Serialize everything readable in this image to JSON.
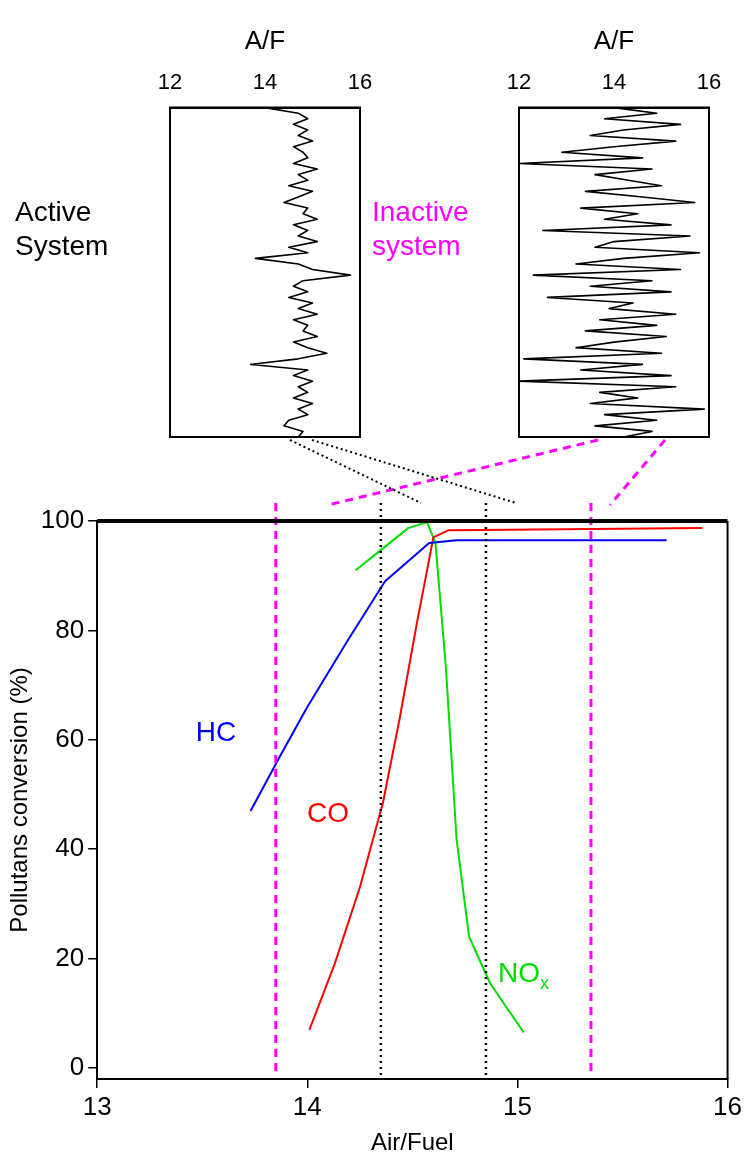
{
  "chart_data": [
    {
      "type": "line",
      "orientation": "horizontal",
      "xlabel": "A/F",
      "xlim": [
        12,
        16
      ],
      "xticks": [
        12,
        14,
        16
      ],
      "tick_labels": "x",
      "marker": "none",
      "annotations": [
        "Active System"
      ],
      "categories": [
        null,
        null,
        null,
        null,
        null,
        null,
        null,
        null,
        null,
        null,
        null,
        null,
        null,
        null,
        null,
        null,
        null,
        null,
        null,
        null,
        null,
        null,
        null,
        null,
        null,
        null,
        null,
        null,
        null,
        null,
        null,
        null,
        null,
        null,
        null,
        null,
        null,
        null,
        null,
        null,
        null,
        null,
        null,
        null,
        null,
        null,
        null,
        null,
        null,
        null,
        null,
        null,
        null,
        null,
        null,
        null,
        null,
        null,
        null,
        null
      ],
      "series": [
        {
          "color": "#000000",
          "values": [
            14.0,
            14.7,
            14.9,
            14.6,
            14.9,
            14.7,
            15.0,
            14.6,
            14.8,
            14.9,
            14.6,
            15.1,
            14.7,
            14.9,
            14.5,
            15.0,
            14.7,
            14.4,
            14.9,
            14.8,
            15.1,
            14.6,
            14.9,
            14.7,
            15.1,
            14.5,
            14.9,
            13.8,
            14.7,
            15.0,
            15.8,
            14.8,
            14.6,
            14.9,
            14.5,
            15.0,
            14.7,
            15.1,
            14.6,
            14.9,
            14.8,
            15.1,
            14.6,
            14.9,
            15.3,
            14.7,
            13.7,
            14.9,
            14.6,
            15.0,
            14.7,
            14.9,
            14.6,
            15.0,
            14.7,
            14.9,
            14.5,
            14.4,
            14.8,
            14.7
          ]
        }
      ]
    },
    {
      "type": "line",
      "orientation": "horizontal",
      "xlabel": "A/F",
      "xlim": [
        12,
        16
      ],
      "xticks": [
        12,
        14,
        16
      ],
      "tick_labels": "x",
      "marker": "none",
      "annotations": [
        "Inactive system"
      ],
      "categories": [
        null,
        null,
        null,
        null,
        null,
        null,
        null,
        null,
        null,
        null,
        null,
        null,
        null,
        null,
        null,
        null,
        null,
        null,
        null,
        null,
        null,
        null,
        null,
        null,
        null,
        null,
        null,
        null,
        null,
        null,
        null,
        null,
        null,
        null,
        null,
        null,
        null,
        null,
        null,
        null,
        null,
        null,
        null,
        null,
        null,
        null,
        null,
        null,
        null,
        null,
        null,
        null,
        null,
        null,
        null,
        null,
        null,
        null,
        null,
        null
      ],
      "series": [
        {
          "color": "#000000",
          "values": [
            14.0,
            14.9,
            13.8,
            15.4,
            14.2,
            13.5,
            15.3,
            14.0,
            12.9,
            14.6,
            12.0,
            14.8,
            13.6,
            14.3,
            15.0,
            13.4,
            14.6,
            15.7,
            13.3,
            14.5,
            13.8,
            15.2,
            12.5,
            15.6,
            14.0,
            13.6,
            15.8,
            14.2,
            13.2,
            15.4,
            12.3,
            14.8,
            13.5,
            15.2,
            12.6,
            14.4,
            13.9,
            15.3,
            13.7,
            14.9,
            13.4,
            15.1,
            14.0,
            13.2,
            15.0,
            12.1,
            14.6,
            13.3,
            15.2,
            12.0,
            15.3,
            13.7,
            14.5,
            13.5,
            15.9,
            13.8,
            14.9,
            13.6,
            14.8,
            14.2
          ]
        }
      ]
    },
    {
      "type": "line",
      "xlabel": "Air/Fuel",
      "ylabel": "Pollutans conversion (%)",
      "xlim": [
        13,
        16
      ],
      "xticks": [
        13,
        14,
        15,
        16
      ],
      "ylim": [
        -2,
        100
      ],
      "yticks": [
        0,
        20,
        40,
        60,
        80,
        100
      ],
      "marker": "none",
      "grid": false,
      "legend": false,
      "series": [
        {
          "name": "HC",
          "color": "#0000ff",
          "x": [
            13.73,
            13.87,
            14.0,
            14.19,
            14.37,
            14.58,
            14.71,
            15.71
          ],
          "values": [
            47,
            57,
            66,
            78,
            89,
            96,
            96.5,
            96.5
          ]
        },
        {
          "name": "CO",
          "color": "#ff0000",
          "x": [
            14.01,
            14.13,
            14.25,
            14.36,
            14.44,
            14.52,
            14.6,
            14.67,
            15.88
          ],
          "values": [
            7,
            19,
            33,
            48.5,
            64,
            81,
            97,
            98.3,
            98.7
          ]
        },
        {
          "name": "NO$_{x}$",
          "color": "#00dd00",
          "x": [
            14.23,
            14.36,
            14.48,
            14.57,
            14.61,
            14.66,
            14.71,
            14.77,
            14.87,
            15.03
          ],
          "values": [
            91,
            95,
            98.7,
            99.8,
            96,
            73,
            42,
            24,
            15.5,
            6.5
          ]
        }
      ],
      "ref_lines": [
        {
          "axis": "x",
          "value": 13.85,
          "color": "#ff00ff",
          "line_style": "dashed"
        },
        {
          "axis": "x",
          "value": 15.35,
          "color": "#ff00ff",
          "line_style": "dashed"
        },
        {
          "axis": "x",
          "value": 14.35,
          "color": "#000000",
          "line_style": "dotted"
        },
        {
          "axis": "x",
          "value": 14.85,
          "color": "#000000",
          "line_style": "dotted"
        }
      ]
    }
  ]
}
